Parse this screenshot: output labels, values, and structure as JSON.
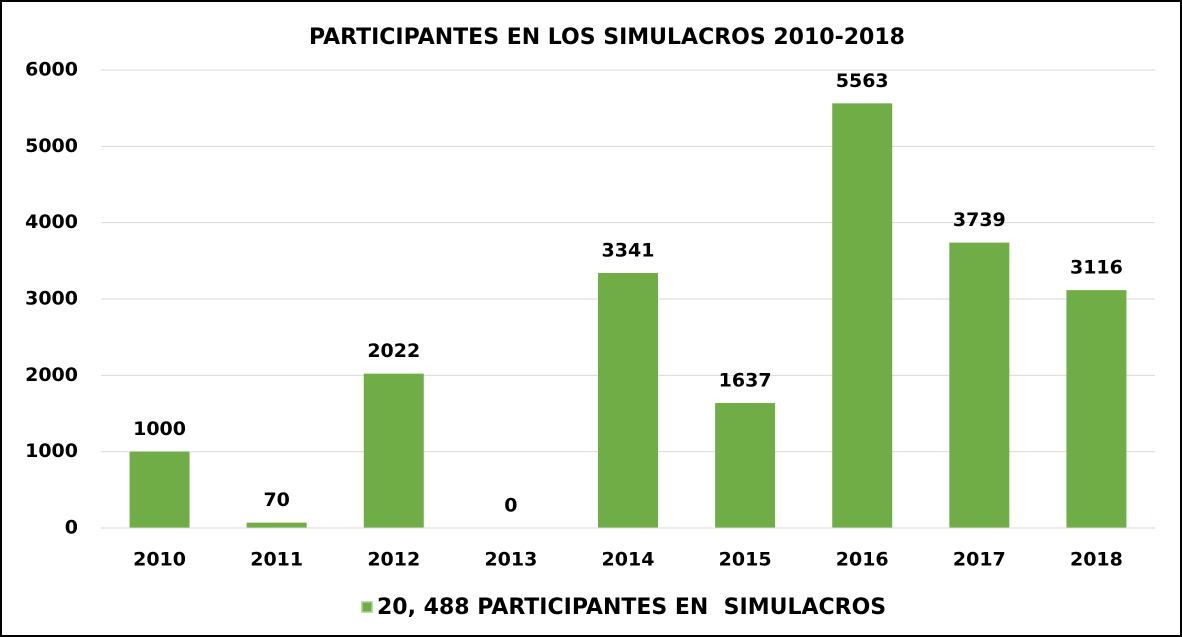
{
  "chart_data": {
    "type": "bar",
    "title": "PARTICIPANTES EN LOS SIMULACROS 2010-2018",
    "categories": [
      "2010",
      "2011",
      "2012",
      "2013",
      "2014",
      "2015",
      "2016",
      "2017",
      "2018"
    ],
    "series": [
      {
        "name": "20, 488 PARTICIPANTES EN  SIMULACROS",
        "color": "#70ad47",
        "values": [
          1000,
          70,
          2022,
          0,
          3341,
          1637,
          5563,
          3739,
          3116
        ]
      }
    ],
    "ylim": [
      0,
      6000
    ],
    "yticks": [
      0,
      1000,
      2000,
      3000,
      4000,
      5000,
      6000
    ],
    "grid": true
  }
}
